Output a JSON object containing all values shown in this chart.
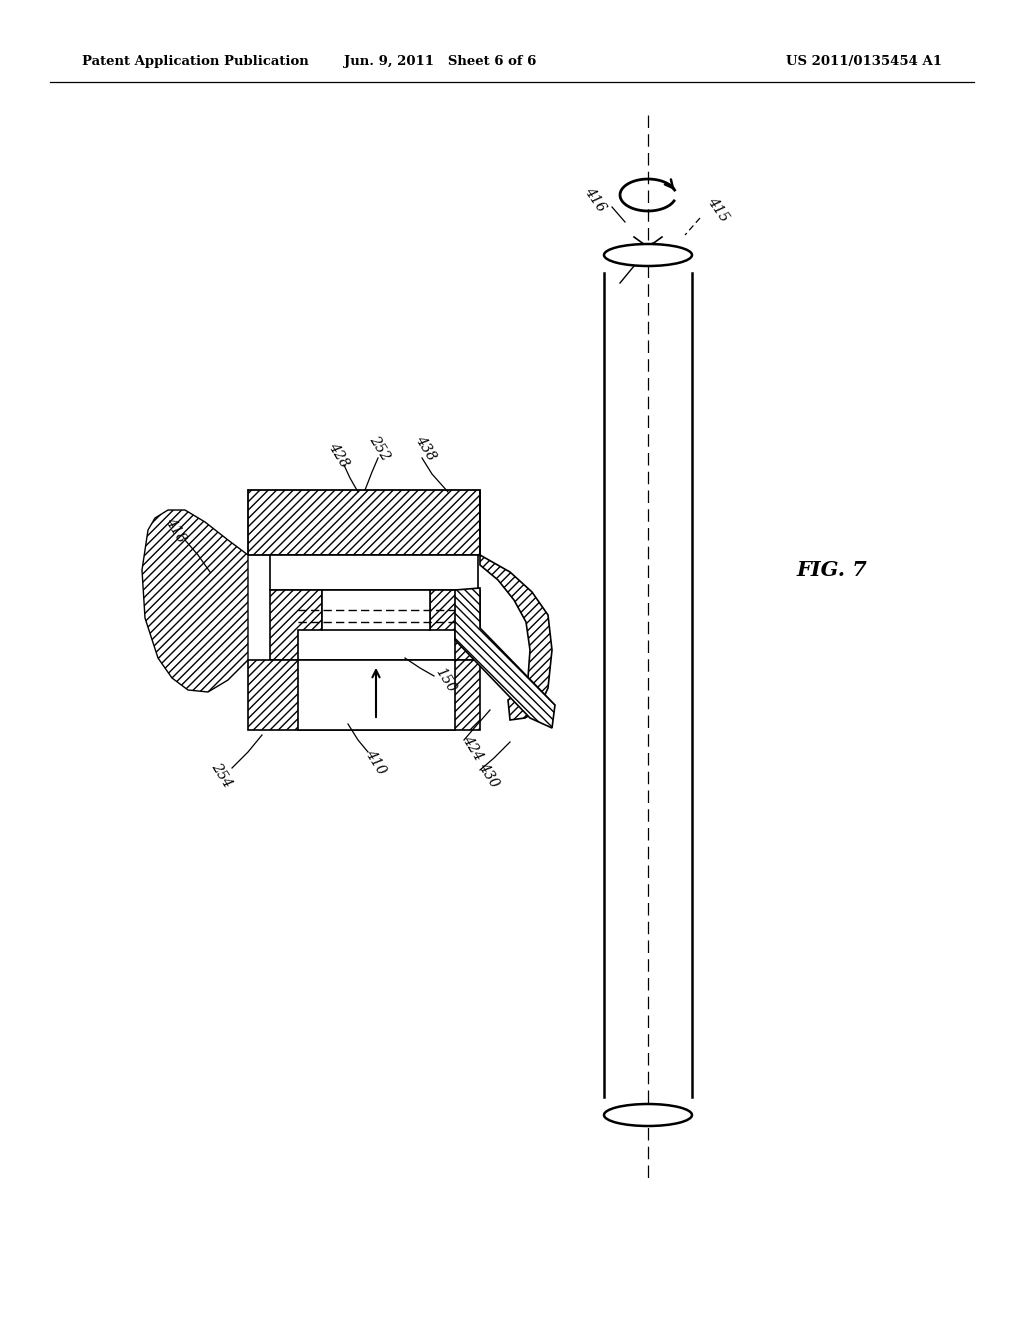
{
  "background_color": "#ffffff",
  "header_left": "Patent Application Publication",
  "header_center": "Jun. 9, 2011   Sheet 6 of 6",
  "header_right": "US 2011/0135454 A1",
  "figure_label": "FIG. 7"
}
